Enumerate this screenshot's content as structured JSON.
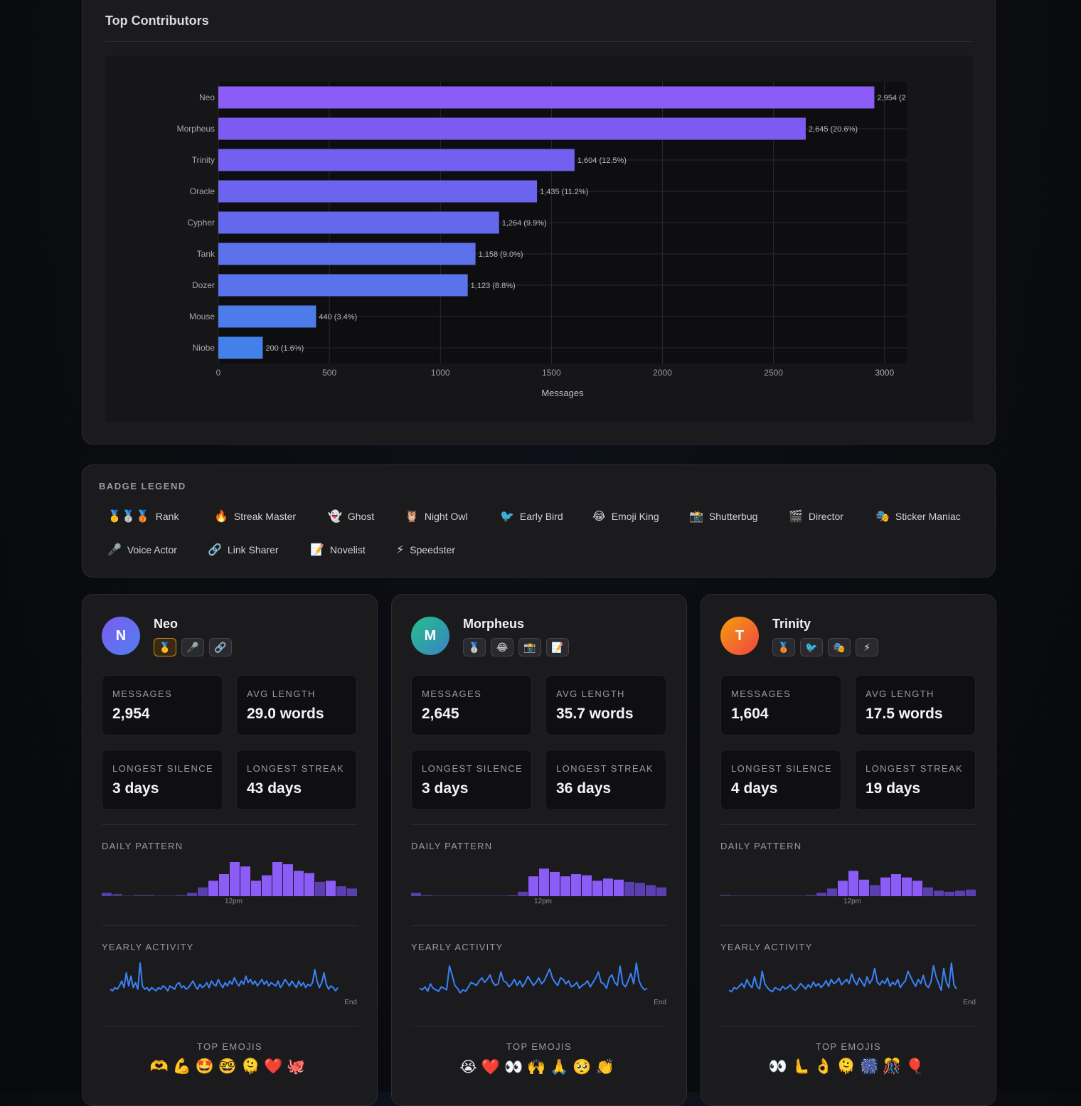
{
  "chart_panel": {
    "title": "Top Contributors"
  },
  "chart_data": {
    "type": "bar",
    "orientation": "horizontal",
    "categories": [
      "Neo",
      "Morpheus",
      "Trinity",
      "Oracle",
      "Cypher",
      "Tank",
      "Dozer",
      "Mouse",
      "Niobe"
    ],
    "values": [
      2954,
      2645,
      1604,
      1435,
      1264,
      1158,
      1123,
      440,
      200
    ],
    "data_labels": [
      "2,954 (2",
      "2,645 (20.6%)",
      "1,604 (12.5%)",
      "1,435 (11.2%)",
      "1,264 (9.9%)",
      "1,158 (9.0%)",
      "1,123 (8.8%)",
      "440 (3.4%)",
      "200 (1.6%)"
    ],
    "xlabel": "Messages",
    "xlim": [
      0,
      3100
    ],
    "xticks": [
      0,
      500,
      1000,
      1500,
      2000,
      2500,
      3000
    ],
    "grid": true,
    "colors": [
      "#8b5cf6",
      "#7c5cf0",
      "#735ff0",
      "#6c63ee",
      "#6468ec",
      "#5c70ea",
      "#5a72ea",
      "#4c7cea",
      "#4480ea"
    ]
  },
  "legend": {
    "title": "BADGE LEGEND",
    "items": [
      {
        "icon": "🥇🥈🥉",
        "label": "Rank"
      },
      {
        "icon": "🔥",
        "label": "Streak Master"
      },
      {
        "icon": "👻",
        "label": "Ghost"
      },
      {
        "icon": "🦉",
        "label": "Night Owl"
      },
      {
        "icon": "🐦",
        "label": "Early Bird"
      },
      {
        "icon": "😂",
        "label": "Emoji King"
      },
      {
        "icon": "📸",
        "label": "Shutterbug"
      },
      {
        "icon": "🎬",
        "label": "Director"
      },
      {
        "icon": "🎭",
        "label": "Sticker Maniac"
      },
      {
        "icon": "🎤",
        "label": "Voice Actor"
      },
      {
        "icon": "🔗",
        "label": "Link Sharer"
      },
      {
        "icon": "📝",
        "label": "Novelist"
      },
      {
        "icon": "⚡",
        "label": "Speedster"
      }
    ]
  },
  "labels": {
    "messages": "MESSAGES",
    "avg_length": "AVG LENGTH",
    "longest_silence": "LONGEST SILENCE",
    "longest_streak": "LONGEST STREAK",
    "daily_pattern": "DAILY PATTERN",
    "noon": "12pm",
    "yearly_activity": "YEARLY ACTIVITY",
    "end": "End",
    "top_emojis": "TOP EMOJIS"
  },
  "cards": [
    {
      "name": "Neo",
      "initial": "N",
      "avatar_colors": [
        "#7c5cf0",
        "#4f7ff0"
      ],
      "badges": [
        "🥇",
        "🎤",
        "🔗"
      ],
      "messages": "2,954",
      "avg_length": "29.0 words",
      "longest_silence": "3 days",
      "longest_streak": "43 days",
      "daily": [
        3,
        2,
        0,
        1,
        1,
        0,
        0,
        1,
        3,
        8,
        14,
        20,
        31,
        27,
        14,
        19,
        31,
        29,
        23,
        21,
        13,
        14,
        9,
        7
      ],
      "yearly": [
        4,
        3,
        5,
        4,
        6,
        9,
        5,
        14,
        6,
        12,
        5,
        8,
        4,
        20,
        6,
        4,
        5,
        3,
        5,
        4,
        3,
        5,
        4,
        6,
        5,
        3,
        6,
        5,
        4,
        7,
        8,
        5,
        6,
        4,
        5,
        7,
        9,
        6,
        4,
        7,
        5,
        6,
        8,
        5,
        9,
        7,
        6,
        10,
        7,
        5,
        8,
        6,
        9,
        7,
        11,
        8,
        6,
        9,
        7,
        12,
        8,
        10,
        7,
        9,
        6,
        8,
        10,
        7,
        9,
        6,
        8,
        7,
        6,
        9,
        5,
        7,
        10,
        8,
        6,
        9,
        7,
        5,
        9,
        6,
        8,
        5,
        7,
        6,
        8,
        16,
        9,
        5,
        8,
        14,
        7,
        4,
        6,
        5,
        3,
        5
      ],
      "top_emojis": "🫶💪🤩🤓🫠❤️🐙"
    },
    {
      "name": "Morpheus",
      "initial": "M",
      "avatar_colors": [
        "#22c08b",
        "#3b82c4"
      ],
      "badges": [
        "🥈",
        "😂",
        "📸",
        "📝"
      ],
      "messages": "2,645",
      "avg_length": "35.7 words",
      "longest_silence": "3 days",
      "longest_streak": "36 days",
      "daily": [
        3,
        1,
        0,
        0,
        0,
        0,
        0,
        0,
        0,
        1,
        4,
        18,
        25,
        22,
        18,
        20,
        19,
        14,
        16,
        15,
        13,
        12,
        10,
        8
      ],
      "yearly": [
        5,
        4,
        6,
        3,
        8,
        5,
        4,
        3,
        6,
        5,
        4,
        20,
        14,
        7,
        5,
        2,
        4,
        3,
        6,
        9,
        8,
        7,
        10,
        12,
        9,
        11,
        14,
        9,
        7,
        8,
        16,
        10,
        9,
        6,
        8,
        11,
        7,
        10,
        6,
        9,
        13,
        10,
        7,
        9,
        12,
        8,
        10,
        14,
        18,
        12,
        9,
        7,
        12,
        11,
        8,
        10,
        6,
        7,
        9,
        5,
        7,
        8,
        10,
        6,
        9,
        12,
        16,
        9,
        8,
        5,
        12,
        14,
        9,
        7,
        20,
        8,
        6,
        10,
        15,
        8,
        22,
        10,
        6,
        4,
        5
      ],
      "top_emojis": "😭❤️👀🙌🙏🥺👏"
    },
    {
      "name": "Trinity",
      "initial": "T",
      "avatar_colors": [
        "#f59e0b",
        "#ef4444"
      ],
      "badges": [
        "🥉",
        "🐦",
        "🎭",
        "⚡"
      ],
      "messages": "1,604",
      "avg_length": "17.5 words",
      "longest_silence": "4 days",
      "longest_streak": "19 days",
      "daily": [
        1,
        0,
        0,
        0,
        0,
        0,
        0,
        0,
        1,
        3,
        7,
        14,
        23,
        15,
        10,
        17,
        20,
        17,
        14,
        8,
        5,
        4,
        5,
        6
      ],
      "yearly": [
        4,
        3,
        6,
        5,
        7,
        9,
        6,
        12,
        8,
        6,
        14,
        7,
        5,
        18,
        9,
        6,
        4,
        3,
        6,
        5,
        4,
        7,
        5,
        6,
        8,
        5,
        4,
        6,
        9,
        7,
        5,
        8,
        6,
        10,
        7,
        9,
        6,
        8,
        11,
        7,
        12,
        9,
        10,
        13,
        8,
        10,
        12,
        9,
        16,
        11,
        8,
        13,
        10,
        7,
        14,
        9,
        12,
        20,
        10,
        8,
        11,
        9,
        13,
        7,
        10,
        8,
        12,
        6,
        9,
        11,
        18,
        14,
        10,
        7,
        12,
        9,
        15,
        8,
        6,
        10,
        22,
        14,
        9,
        4,
        20,
        10,
        6,
        24,
        8,
        5
      ],
      "top_emojis": "👀🫷👌🫠🎆🎊🎈"
    }
  ]
}
